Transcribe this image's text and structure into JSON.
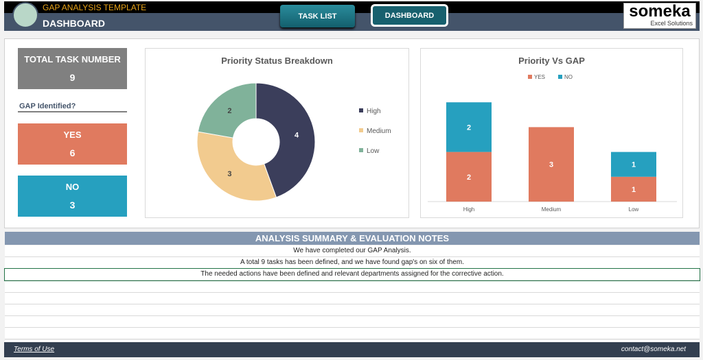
{
  "header": {
    "app_title": "GAP ANALYSIS TEMPLATE",
    "page_title": "DASHBOARD",
    "nav": [
      {
        "label": "TASK LIST"
      },
      {
        "label": "DASHBOARD"
      }
    ],
    "brand": {
      "name": "someka",
      "tagline": "Excel Solutions"
    }
  },
  "kpis": {
    "total_label": "TOTAL TASK NUMBER",
    "total_value": "9",
    "gap_label": "GAP Identified?",
    "yes_label": "YES",
    "yes_value": "6",
    "no_label": "NO",
    "no_value": "3"
  },
  "colors": {
    "high": "#3b3e5b",
    "medium": "#f2cb8f",
    "low": "#80b29a",
    "yes": "#e07a5f",
    "no": "#26a0bf",
    "kpi_total": "#808080"
  },
  "chart_data": [
    {
      "type": "pie",
      "title": "Priority Status Breakdown",
      "categories": [
        "High",
        "Medium",
        "Low"
      ],
      "values": [
        4,
        3,
        2
      ],
      "donut": true,
      "legend": "right"
    },
    {
      "type": "bar",
      "stacked": true,
      "title": "Priority Vs GAP",
      "categories": [
        "High",
        "Medium",
        "Low"
      ],
      "series": [
        {
          "name": "YES",
          "values": [
            2,
            3,
            1
          ]
        },
        {
          "name": "NO",
          "values": [
            2,
            0,
            1
          ]
        }
      ],
      "ylim": [
        0,
        4
      ],
      "legend": "top",
      "grid": false
    }
  ],
  "summary": {
    "title": "ANALYSIS SUMMARY & EVALUATION NOTES",
    "rows": [
      "We have completed our GAP Analysis.",
      "A total 9 tasks has been defined, and we have found gap's on six of them.",
      "The needed actions have been defined and relevant departments assigned for the corrective action.",
      "",
      "",
      "",
      "",
      "",
      ""
    ]
  },
  "footer": {
    "terms": "Terms of Use",
    "contact": "contact@someka.net"
  }
}
